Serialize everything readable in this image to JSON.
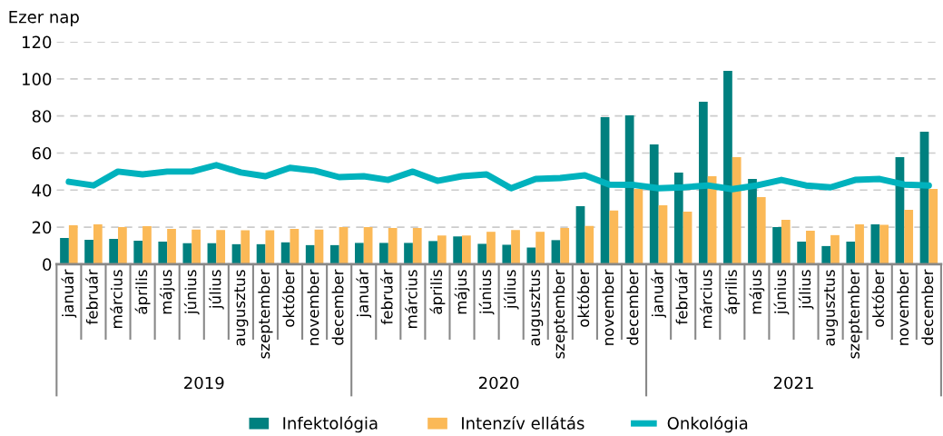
{
  "chart_data": {
    "type": "bar",
    "ylabel": "Ezer nap",
    "categories": [
      "január",
      "február",
      "március",
      "április",
      "május",
      "június",
      "július",
      "augusztus",
      "szeptember",
      "október",
      "november",
      "december",
      "január",
      "február",
      "március",
      "április",
      "május",
      "június",
      "július",
      "augusztus",
      "szeptember",
      "október",
      "november",
      "december",
      "január",
      "február",
      "március",
      "április",
      "május",
      "június",
      "július",
      "augusztus",
      "szeptember",
      "október",
      "november",
      "december"
    ],
    "annotations": [
      "2019",
      "2020",
      "2021"
    ],
    "series": [
      {
        "name": "Infektológia",
        "color": "#00807f",
        "values": [
          14.2,
          13.2,
          13.7,
          12.7,
          12.2,
          11.3,
          11.3,
          10.8,
          10.8,
          11.8,
          10.3,
          10.3,
          11.5,
          11.5,
          11.5,
          12.5,
          15,
          11,
          10.5,
          9,
          13,
          31.3,
          79.3,
          80.3,
          64.6,
          49.5,
          87.7,
          104.3,
          46,
          20,
          12.2,
          9.8,
          12.2,
          21.5,
          57.8,
          71.5
        ]
      },
      {
        "name": "Intenzív ellátás",
        "color": "#fbb957",
        "values": [
          21,
          21.5,
          20,
          20.5,
          19,
          18.7,
          18.5,
          18.3,
          18.3,
          19,
          18.7,
          20,
          20,
          19.5,
          19.5,
          15.5,
          15.5,
          17.5,
          18.5,
          17.5,
          19.5,
          20.6,
          29,
          40.6,
          31.8,
          28.4,
          47.5,
          57.8,
          36.2,
          24,
          18.1,
          15.7,
          21.5,
          21.3,
          29.4,
          40.6
        ]
      },
      {
        "name": "Onkológia",
        "type": "line",
        "color": "#00b2bd",
        "values": [
          44.5,
          42.5,
          50,
          48.5,
          50,
          50,
          53.5,
          49.5,
          47.5,
          52,
          50.5,
          47,
          47.5,
          45.5,
          50,
          45,
          47.5,
          48.5,
          41,
          46,
          46.5,
          48,
          43,
          42.8,
          41,
          41.5,
          42.5,
          40.5,
          42.5,
          45.5,
          42.5,
          41.5,
          45.5,
          46,
          43,
          42.5
        ]
      }
    ],
    "ylim": [
      0,
      120
    ],
    "yticks": [
      0,
      20,
      40,
      60,
      80,
      100,
      120
    ],
    "grid": "y",
    "legend": "bottom",
    "marker": "none",
    "line_style": "solid"
  }
}
